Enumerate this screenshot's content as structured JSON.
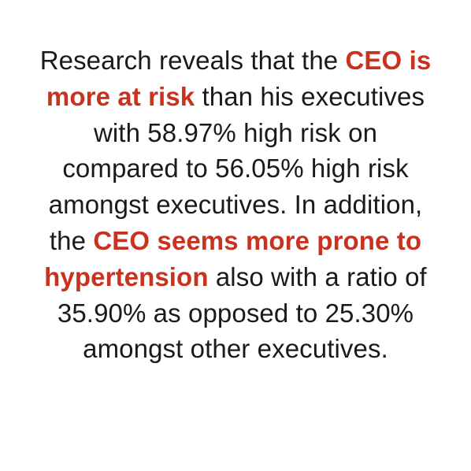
{
  "highlight_color": "#c8321f",
  "text_color": "#1a1a1a",
  "background_color": "#ffffff",
  "statement": {
    "l1_plain": "Research reveals that the ",
    "l1_hl": "CEO is",
    "l2_hl": "more at risk",
    "l2_plain": " than his executives",
    "l3": "with 58.97% high risk on",
    "l4": "compared to 56.05% high risk",
    "l5": "amongst executives. In addition,",
    "l6_plain": "the ",
    "l6_hl": "CEO seems more prone to",
    "l7_hl": "hypertension",
    "l7_plain": " also with a ratio of",
    "l8": "35.90% as opposed to 25.30%",
    "l9": "amongst other executives."
  }
}
